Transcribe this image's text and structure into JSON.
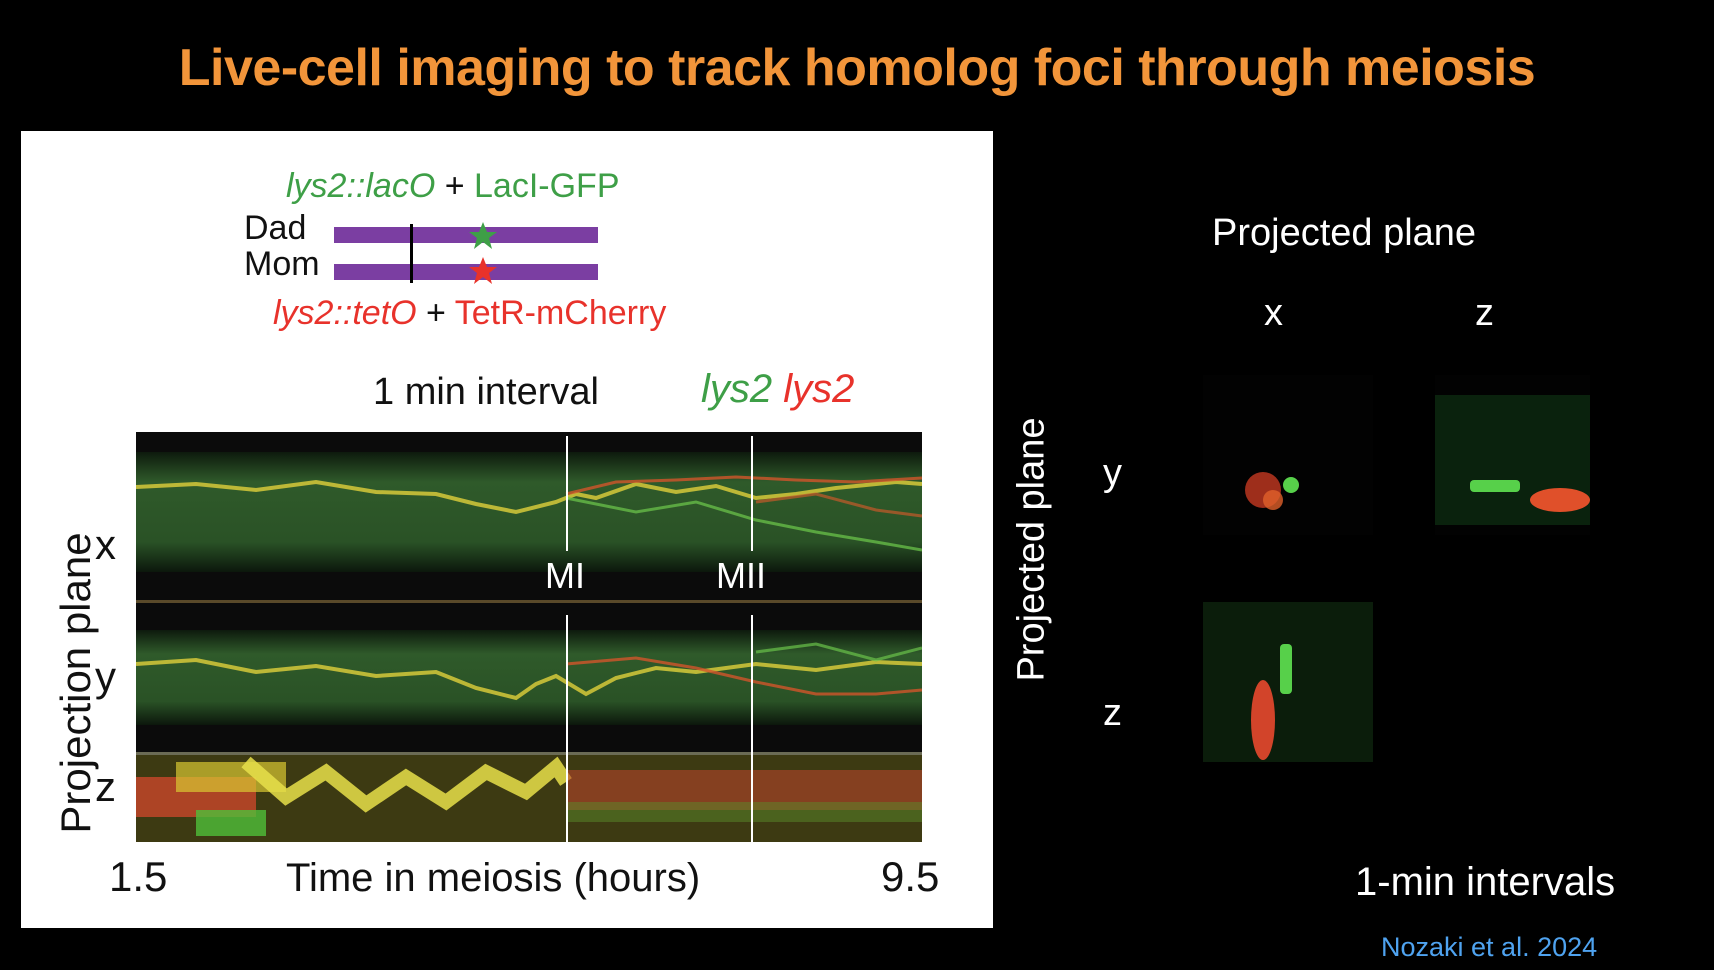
{
  "slide": {
    "title": "Live-cell imaging to track homolog foci through meiosis",
    "citation": "Nozaki et al. 2024"
  },
  "left_figure": {
    "legend_top": {
      "locus": "lys2::lacO",
      "plus": " + ",
      "protein": "LacI-GFP"
    },
    "legend_bottom": {
      "locus": "lys2::tetO",
      "plus": " + ",
      "protein": "TetR-mCherry"
    },
    "dad_label": "Dad",
    "mom_label": "Mom",
    "interval_label": "1 min interval",
    "channel_green": "lys2",
    "channel_red": "lys2",
    "axis_label_y": "Projection plane",
    "row_labels": [
      "x",
      "y",
      "z"
    ],
    "markers": [
      "MI",
      "MII"
    ],
    "time_start": "1.5",
    "time_end": "9.5",
    "axis_label_x": "Time in meiosis (hours)"
  },
  "right_figure": {
    "header": "Projected plane",
    "col_labels": [
      "x",
      "z"
    ],
    "side_label": "Projected plane",
    "row_labels": [
      "y",
      "z"
    ],
    "footer": "1-min intervals"
  },
  "colors": {
    "title": "#f2953a",
    "chromosome": "#7b3ea2",
    "gfp": "#3e9f47",
    "mcherry": "#e8322b",
    "citation": "#4fa3f0"
  }
}
